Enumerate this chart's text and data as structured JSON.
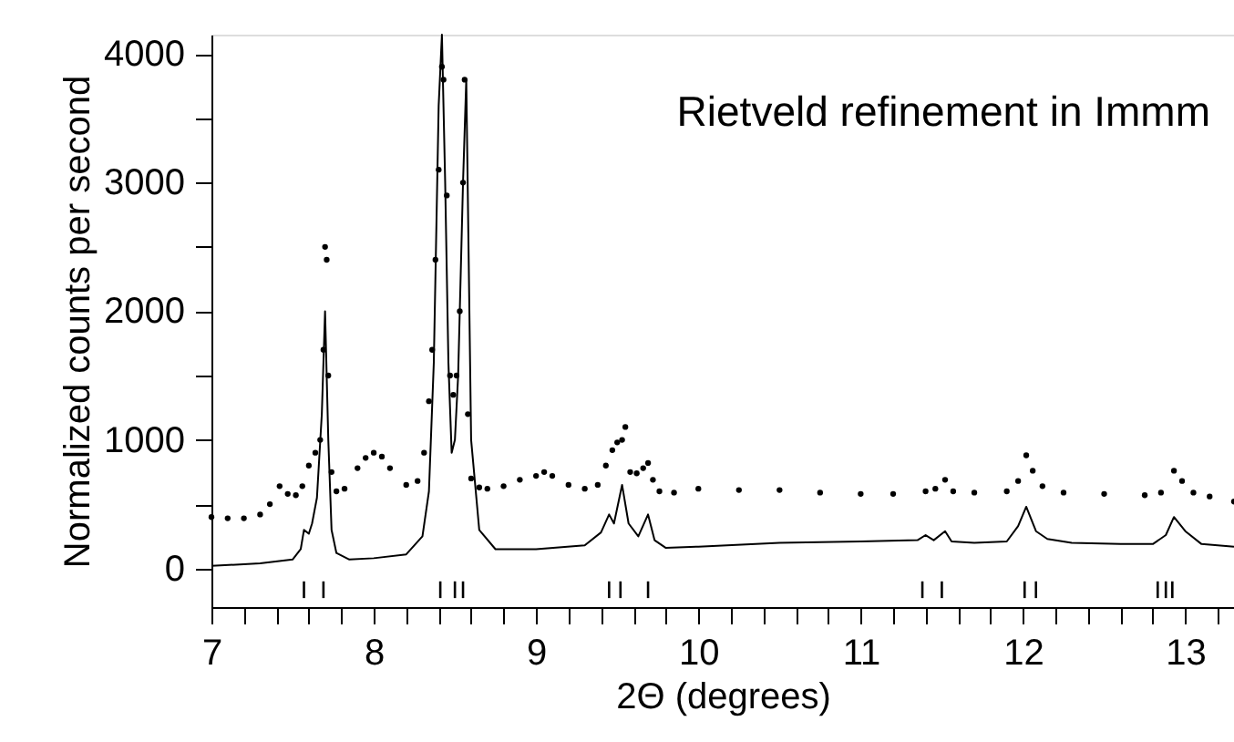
{
  "chart_data": {
    "type": "scatter",
    "xlabel": "2Θ (degrees)",
    "ylabel": "Normalized counts per second",
    "annotations": [
      "Rietveld refinement in Immm"
    ],
    "xlim": [
      7,
      13.3
    ],
    "ylim": [
      -300,
      4150
    ],
    "xticks": [
      7,
      {
        "value": 7.2,
        "label": null
      },
      {
        "value": 7.4,
        "label": null
      },
      {
        "value": 7.6,
        "label": null
      },
      {
        "value": 7.8,
        "label": null
      },
      8,
      {
        "value": 8.2,
        "label": null
      },
      {
        "value": 8.4,
        "label": null
      },
      {
        "value": 8.6,
        "label": null
      },
      {
        "value": 8.8,
        "label": null
      },
      9,
      {
        "value": 9.2,
        "label": null
      },
      {
        "value": 9.4,
        "label": null
      },
      {
        "value": 9.6,
        "label": null
      },
      {
        "value": 9.8,
        "label": null
      },
      10,
      {
        "value": 10.2,
        "label": null
      },
      {
        "value": 10.4,
        "label": null
      },
      {
        "value": 10.6,
        "label": null
      },
      {
        "value": 10.8,
        "label": null
      },
      11,
      {
        "value": 11.2,
        "label": null
      },
      {
        "value": 11.4,
        "label": null
      },
      {
        "value": 11.6,
        "label": null
      },
      {
        "value": 11.8,
        "label": null
      },
      12,
      {
        "value": 12.2,
        "label": null
      },
      {
        "value": 12.4,
        "label": null
      },
      {
        "value": 12.6,
        "label": null
      },
      {
        "value": 12.8,
        "label": null
      },
      13,
      {
        "value": 13.2,
        "label": null
      }
    ],
    "yticks": [
      0,
      {
        "value": 500,
        "label": null
      },
      1000,
      {
        "value": 1500,
        "label": null
      },
      2000,
      {
        "value": 2500,
        "label": null
      },
      3000,
      {
        "value": 3500,
        "label": null
      },
      4000
    ],
    "grid": false,
    "legend": false,
    "series": [
      {
        "marker": "circle",
        "color": "#000000",
        "x": [
          7.0,
          7.1,
          7.2,
          7.3,
          7.36,
          7.42,
          7.47,
          7.52,
          7.56,
          7.6,
          7.64,
          7.67,
          7.69,
          7.7,
          7.71,
          7.72,
          7.74,
          7.77,
          7.82,
          7.9,
          7.95,
          8.0,
          8.05,
          8.1,
          8.2,
          8.27,
          8.31,
          8.34,
          8.36,
          8.38,
          8.4,
          8.42,
          8.43,
          8.45,
          8.47,
          8.49,
          8.51,
          8.53,
          8.55,
          8.56,
          8.58,
          8.6,
          8.65,
          8.7,
          8.8,
          8.9,
          9.0,
          9.05,
          9.1,
          9.2,
          9.3,
          9.38,
          9.43,
          9.47,
          9.5,
          9.53,
          9.55,
          9.58,
          9.62,
          9.66,
          9.69,
          9.72,
          9.76,
          9.85,
          10.0,
          10.25,
          10.5,
          10.75,
          11.0,
          11.2,
          11.4,
          11.46,
          11.52,
          11.57,
          11.7,
          11.9,
          11.97,
          12.02,
          12.06,
          12.12,
          12.25,
          12.5,
          12.75,
          12.85,
          12.93,
          12.98,
          13.05,
          13.15,
          13.3
        ],
        "values": [
          400,
          390,
          390,
          420,
          500,
          640,
          580,
          570,
          640,
          800,
          900,
          1000,
          1700,
          2500,
          2400,
          1500,
          750,
          600,
          620,
          780,
          860,
          900,
          870,
          780,
          650,
          680,
          900,
          1300,
          1700,
          2400,
          3100,
          3900,
          3800,
          2900,
          1500,
          1350,
          1500,
          2000,
          3000,
          3800,
          1200,
          700,
          630,
          620,
          640,
          690,
          720,
          750,
          720,
          650,
          620,
          650,
          800,
          920,
          980,
          1000,
          1100,
          750,
          740,
          780,
          820,
          690,
          600,
          590,
          620,
          610,
          610,
          590,
          580,
          580,
          600,
          620,
          690,
          600,
          590,
          600,
          680,
          880,
          760,
          640,
          590,
          580,
          570,
          590,
          760,
          680,
          590,
          560,
          520
        ]
      },
      {
        "type": "line",
        "color": "#000000",
        "x": [
          7.0,
          7.3,
          7.5,
          7.55,
          7.57,
          7.6,
          7.62,
          7.65,
          7.68,
          7.7,
          7.72,
          7.74,
          7.77,
          7.85,
          8.0,
          8.2,
          8.3,
          8.34,
          8.37,
          8.4,
          8.42,
          8.44,
          8.46,
          8.48,
          8.5,
          8.52,
          8.55,
          8.57,
          8.6,
          8.65,
          8.75,
          9.0,
          9.3,
          9.4,
          9.45,
          9.48,
          9.53,
          9.57,
          9.63,
          9.69,
          9.73,
          9.8,
          10.0,
          10.5,
          11.0,
          11.35,
          11.4,
          11.45,
          11.52,
          11.56,
          11.7,
          11.9,
          11.97,
          12.02,
          12.08,
          12.15,
          12.3,
          12.6,
          12.8,
          12.88,
          12.93,
          13.0,
          13.1,
          13.3
        ],
        "values": [
          20,
          40,
          70,
          150,
          300,
          270,
          350,
          550,
          1200,
          2000,
          1000,
          300,
          120,
          70,
          80,
          110,
          250,
          600,
          1600,
          3600,
          4150,
          3000,
          1600,
          900,
          1000,
          1500,
          3000,
          3800,
          1000,
          300,
          150,
          150,
          180,
          280,
          420,
          350,
          650,
          350,
          250,
          420,
          220,
          160,
          170,
          200,
          210,
          220,
          260,
          220,
          290,
          210,
          200,
          210,
          330,
          480,
          290,
          230,
          200,
          190,
          190,
          260,
          400,
          290,
          190,
          170
        ]
      },
      {
        "type": "bar",
        "color": "#000000",
        "x": [
          7.57,
          7.69,
          8.41,
          8.5,
          8.55,
          9.45,
          9.52,
          9.69,
          11.38,
          11.5,
          12.01,
          12.08,
          12.83,
          12.88,
          12.92
        ],
        "base": [
          -230,
          -230,
          -230,
          -230,
          -230,
          -230,
          -230,
          -230,
          -230,
          -230,
          -230,
          -230,
          -230,
          -230,
          -230
        ],
        "values": [
          130,
          130,
          130,
          130,
          130,
          130,
          130,
          130,
          130,
          130,
          130,
          130,
          130,
          130,
          130
        ]
      }
    ]
  }
}
